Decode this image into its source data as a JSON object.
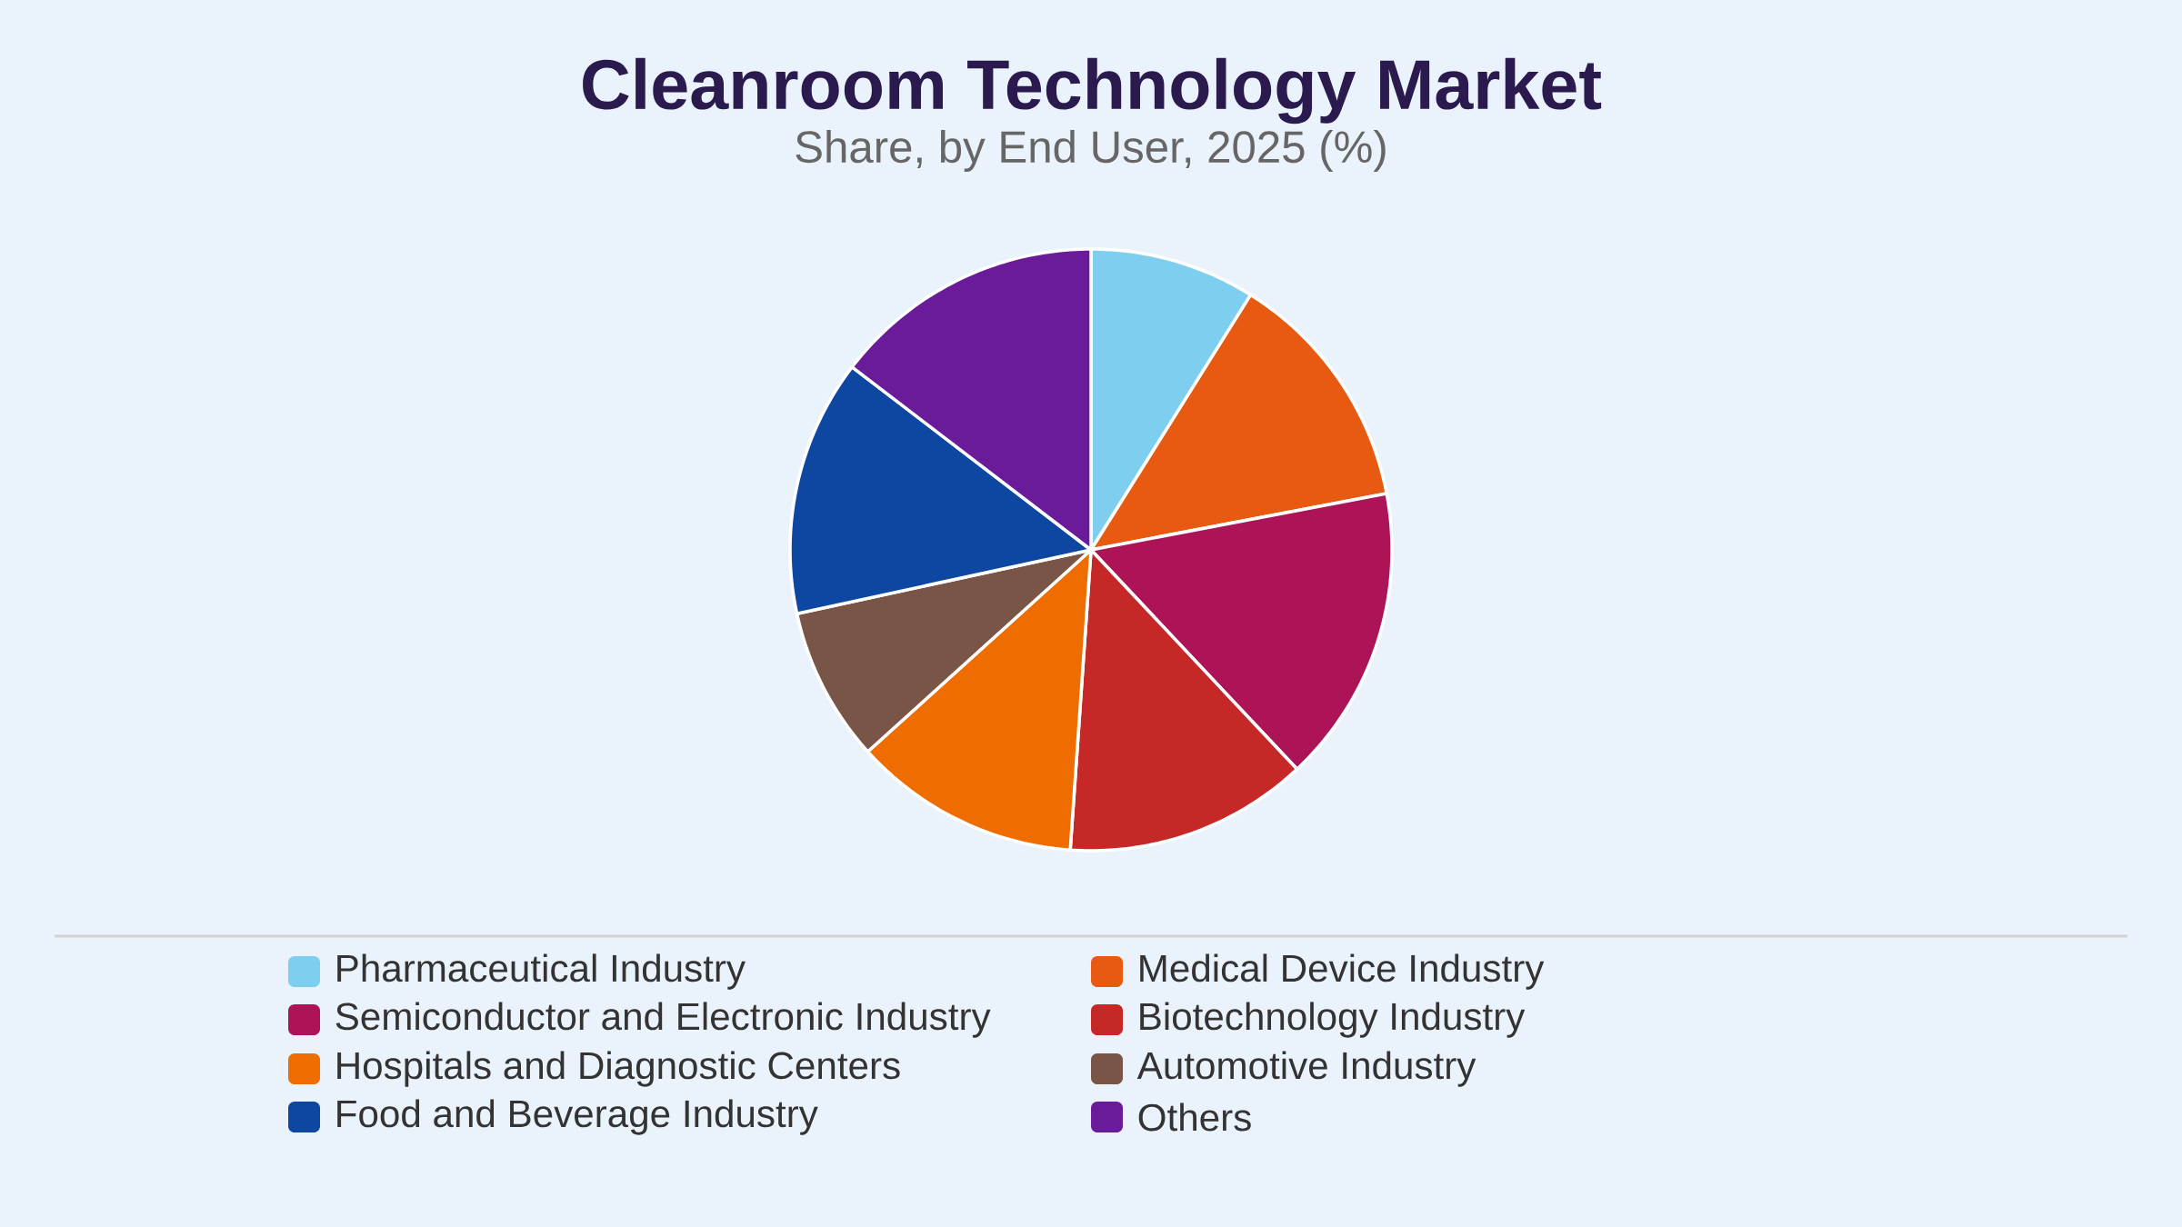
{
  "chart_data": {
    "type": "pie",
    "title": "Cleanroom Technology Market",
    "subtitle": "Share, by End User, 2025 (%)",
    "categories": [
      "Pharmaceutical Industry",
      "Medical Device Industry",
      "Semiconductor and Electronic Industry",
      "Biotechnology Industry",
      "Hospitals and Diagnostic Centers",
      "Automotive Industry",
      "Food and Beverage Industry",
      "Others"
    ],
    "values": [
      8.9,
      13.1,
      16.0,
      13.1,
      12.2,
      8.3,
      13.8,
      14.6
    ],
    "colors": [
      "#7ecef0",
      "#e85a12",
      "#ad1457",
      "#c62828",
      "#ef6c00",
      "#795548",
      "#0d47a1",
      "#6a1b9a"
    ],
    "legend": "bottom"
  }
}
